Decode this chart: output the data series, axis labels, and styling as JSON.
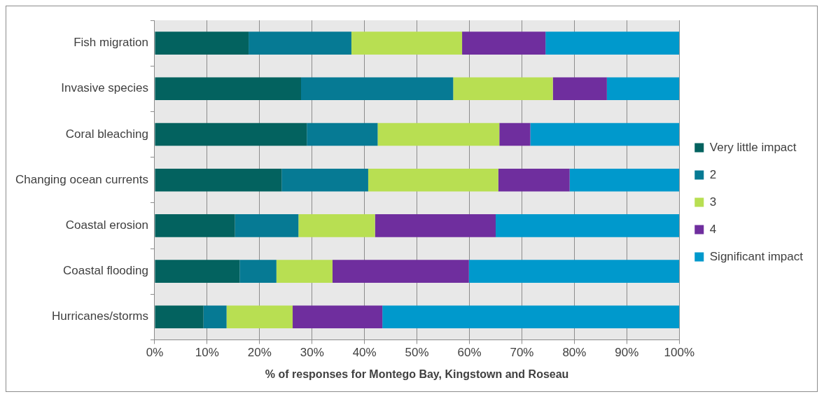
{
  "chart_data": {
    "type": "bar",
    "orientation": "horizontal",
    "stacked": true,
    "xlabel": "% of responses for Montego Bay, Kingstown and Roseau",
    "categories": [
      "Fish migration",
      "Invasive species",
      "Coral bleaching",
      "Changing ocean currents",
      "Coastal erosion",
      "Coastal flooding",
      "Hurricanes/storms"
    ],
    "series": [
      {
        "name": "Very little impact",
        "color": "#03625f",
        "values": [
          17.9,
          27.9,
          29.0,
          24.2,
          15.3,
          16.2,
          9.3
        ]
      },
      {
        "name": "2",
        "color": "#067a94",
        "values": [
          19.6,
          29.0,
          13.5,
          16.5,
          12.1,
          7.0,
          4.4
        ]
      },
      {
        "name": "3",
        "color": "#b8df52",
        "values": [
          21.1,
          19.0,
          23.2,
          24.8,
          14.6,
          10.7,
          12.6
        ]
      },
      {
        "name": "4",
        "color": "#6f2e9e",
        "values": [
          15.9,
          10.3,
          5.9,
          13.6,
          23.0,
          26.0,
          17.1
        ]
      },
      {
        "name": "Significant impact",
        "color": "#0099cc",
        "values": [
          25.5,
          13.8,
          28.4,
          20.9,
          35.0,
          40.1,
          56.6
        ]
      }
    ],
    "xlim": [
      0,
      100
    ],
    "xticks": [
      {
        "value": 0,
        "label": "0%"
      },
      {
        "value": 10,
        "label": "10%"
      },
      {
        "value": 20,
        "label": "20%"
      },
      {
        "value": 30,
        "label": "30%"
      },
      {
        "value": 40,
        "label": "40%"
      },
      {
        "value": 50,
        "label": "50%"
      },
      {
        "value": 60,
        "label": "60%"
      },
      {
        "value": 70,
        "label": "70%"
      },
      {
        "value": 80,
        "label": "80%"
      },
      {
        "value": 90,
        "label": "90%"
      },
      {
        "value": 100,
        "label": "100%"
      }
    ],
    "grid": "x",
    "legend": "right"
  }
}
